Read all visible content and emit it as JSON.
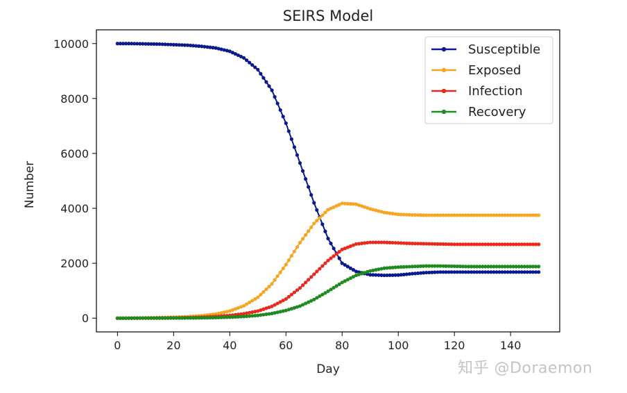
{
  "chart_data": {
    "type": "line",
    "title": "SEIRS Model",
    "xlabel": "Day",
    "ylabel": "Number",
    "xlim": [
      -7.5,
      157.5
    ],
    "ylim": [
      -500,
      10500
    ],
    "xticks": [
      0,
      20,
      40,
      60,
      80,
      100,
      120,
      140
    ],
    "yticks": [
      0,
      2000,
      4000,
      6000,
      8000,
      10000
    ],
    "grid": false,
    "legend_position": "top-right",
    "x": [
      0,
      5,
      10,
      15,
      20,
      25,
      30,
      35,
      40,
      45,
      50,
      55,
      60,
      65,
      70,
      75,
      80,
      85,
      90,
      95,
      100,
      105,
      110,
      115,
      120,
      125,
      130,
      135,
      140,
      145,
      150
    ],
    "series": [
      {
        "name": "Susceptible",
        "color": "#0a1a8c",
        "values": [
          10000,
          10000,
          9990,
          9980,
          9960,
          9940,
          9900,
          9840,
          9720,
          9480,
          9050,
          8300,
          7100,
          5650,
          4200,
          2900,
          2000,
          1700,
          1580,
          1560,
          1570,
          1620,
          1660,
          1680,
          1680,
          1680,
          1680,
          1680,
          1680,
          1680,
          1680
        ]
      },
      {
        "name": "Exposed",
        "color": "#f5a623",
        "values": [
          0,
          5,
          10,
          20,
          35,
          55,
          90,
          150,
          260,
          450,
          760,
          1250,
          1950,
          2750,
          3450,
          3950,
          4180,
          4150,
          3980,
          3850,
          3780,
          3760,
          3750,
          3750,
          3750,
          3750,
          3750,
          3750,
          3750,
          3750,
          3750
        ]
      },
      {
        "name": "Infection",
        "color": "#e8291c",
        "values": [
          0,
          2,
          5,
          8,
          12,
          20,
          35,
          60,
          100,
          160,
          260,
          430,
          700,
          1100,
          1600,
          2100,
          2500,
          2700,
          2760,
          2760,
          2740,
          2720,
          2710,
          2700,
          2690,
          2690,
          2690,
          2690,
          2690,
          2690,
          2690
        ]
      },
      {
        "name": "Recovery",
        "color": "#1f8a1f",
        "values": [
          0,
          0,
          1,
          2,
          4,
          7,
          12,
          20,
          35,
          60,
          100,
          170,
          280,
          440,
          680,
          980,
          1300,
          1560,
          1720,
          1820,
          1860,
          1880,
          1900,
          1900,
          1890,
          1880,
          1880,
          1880,
          1880,
          1880,
          1880
        ]
      }
    ]
  },
  "watermark": "知乎 @Doraemon"
}
